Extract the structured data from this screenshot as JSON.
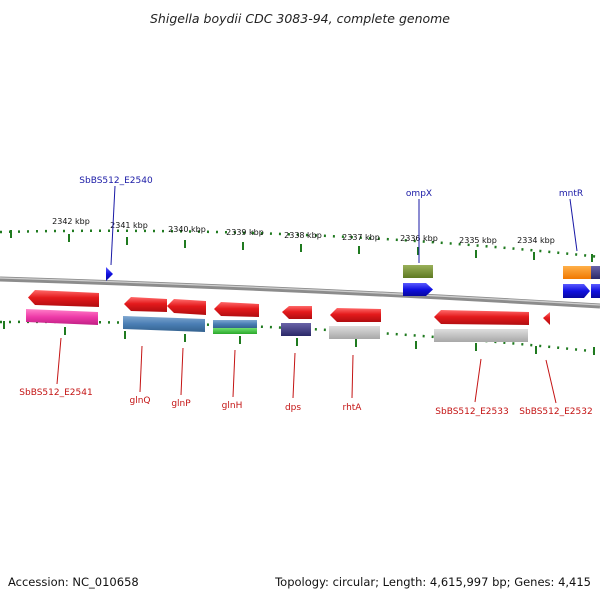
{
  "title": "Shigella boydii CDC 3083-94, complete genome",
  "footer": {
    "accession": "Accession: NC_010658",
    "summary": "Topology: circular; Length: 4,615,997 bp; Genes: 4,415"
  },
  "colors": {
    "backbone": "#8c8c8c",
    "tick": "#1f7a1f",
    "label_forward": "#1a1aa6",
    "label_reverse": "#c41414",
    "cds_reverse": "#e41a1c",
    "cds_forward": "#1010e0"
  },
  "tick_labels": [
    "2342 kbp",
    "2341 kbp",
    "2340 kbp",
    "2339 kbp",
    "2338 kbp",
    "2337 kbp",
    "2336 kbp",
    "2335 kbp",
    "2334 kbp"
  ],
  "genes_forward": [
    {
      "name": "SbBS512_E2540"
    },
    {
      "name": "ompX"
    },
    {
      "name": "mntR"
    }
  ],
  "genes_reverse": [
    {
      "name": "SbBS512_E2541"
    },
    {
      "name": "glnQ"
    },
    {
      "name": "glnP"
    },
    {
      "name": "glnH"
    },
    {
      "name": "dps"
    },
    {
      "name": "rhtA"
    },
    {
      "name": "SbBS512_E2533"
    },
    {
      "name": "SbBS512_E2532"
    }
  ]
}
